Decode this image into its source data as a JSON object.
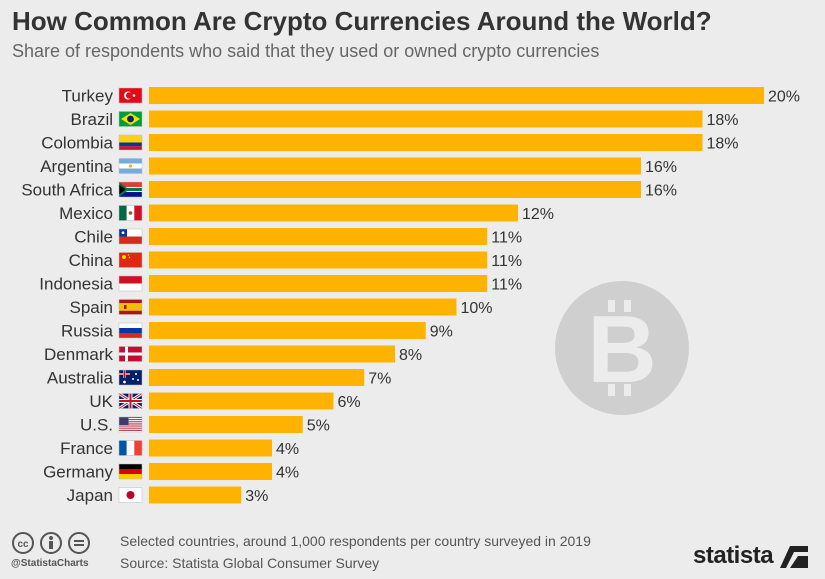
{
  "header": {
    "title": "How Common Are Crypto Currencies Around the World?",
    "subtitle": "Share of respondents who said that they used or owned crypto currencies"
  },
  "chart_data": {
    "type": "bar",
    "orientation": "horizontal",
    "categories": [
      "Turkey",
      "Brazil",
      "Colombia",
      "Argentina",
      "South Africa",
      "Mexico",
      "Chile",
      "China",
      "Indonesia",
      "Spain",
      "Russia",
      "Denmark",
      "Australia",
      "UK",
      "U.S.",
      "France",
      "Germany",
      "Japan"
    ],
    "values": [
      20,
      18,
      18,
      16,
      16,
      12,
      11,
      11,
      11,
      10,
      9,
      8,
      7,
      6,
      5,
      4,
      4,
      3
    ],
    "value_labels": [
      "20%",
      "18%",
      "18%",
      "16%",
      "16%",
      "12%",
      "11%",
      "11%",
      "11%",
      "10%",
      "9%",
      "8%",
      "7%",
      "6%",
      "5%",
      "4%",
      "4%",
      "3%"
    ],
    "unit": "%",
    "bar_color": "#FFB300",
    "flags": [
      "turkey-flag",
      "brazil-flag",
      "colombia-flag",
      "argentina-flag",
      "south-africa-flag",
      "mexico-flag",
      "chile-flag",
      "china-flag",
      "indonesia-flag",
      "spain-flag",
      "russia-flag",
      "denmark-flag",
      "australia-flag",
      "uk-flag",
      "us-flag",
      "france-flag",
      "germany-flag",
      "japan-flag"
    ],
    "xlim": [
      0,
      20
    ],
    "grid": false
  },
  "watermark_icon": "bitcoin-icon",
  "footer": {
    "note": "Selected countries, around 1,000 respondents per country surveyed in 2019",
    "source": "Source: Statista Global Consumer Survey",
    "handle": "@StatistaCharts",
    "brand": "statista",
    "icons": [
      "creative-commons-icon",
      "attribution-icon",
      "no-derivatives-icon"
    ]
  },
  "colors": {
    "background": "#ececec",
    "bar": "#FFB300",
    "text": "#333333",
    "watermark": "#cfcfcf"
  }
}
